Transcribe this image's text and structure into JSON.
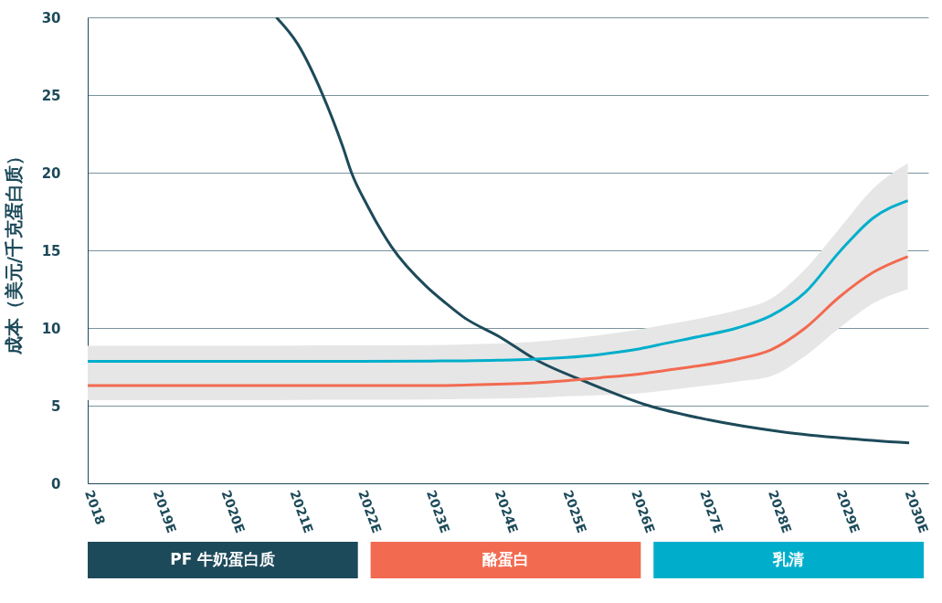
{
  "chart_data": {
    "type": "line",
    "ylabel": "成本（美元/千克蛋白质）",
    "x": [
      2018,
      2019,
      2020,
      2021,
      2022,
      2023,
      2024,
      2024.5,
      2025,
      2025.5,
      2026,
      2026.5,
      2027,
      2027.5,
      2028,
      2028.5,
      2029,
      2029.5,
      2030
    ],
    "series": [
      {
        "name": "PF 牛奶蛋白质",
        "color": "#1d4a5a",
        "x": [
          2020.76,
          2021.07,
          2021.43,
          2021.73,
          2021.86,
          2022.09,
          2022.45,
          2022.95,
          2023.24,
          2023.5,
          2024.04,
          2024.54,
          2025.31,
          2026.21,
          2027.07,
          2028.19,
          2029.09,
          2030.02
        ],
        "values": [
          30.0,
          28.3,
          25.1,
          21.7,
          20.0,
          17.9,
          15.2,
          12.7,
          11.6,
          10.7,
          9.4,
          8.0,
          6.5,
          5.0,
          4.1,
          3.3,
          2.9,
          2.6
        ]
      },
      {
        "name": "酪蛋白",
        "color": "#f26a50",
        "values": [
          6.3,
          6.3,
          6.3,
          6.3,
          6.3,
          6.3,
          6.38,
          6.45,
          6.6,
          6.8,
          7.0,
          7.3,
          7.6,
          8.0,
          8.6,
          10.0,
          12.0,
          13.6,
          14.6
        ]
      },
      {
        "name": "乳清",
        "color": "#00aecb",
        "values": [
          7.85,
          7.85,
          7.85,
          7.85,
          7.85,
          7.87,
          7.92,
          7.98,
          8.1,
          8.3,
          8.6,
          9.05,
          9.5,
          10.0,
          10.8,
          12.3,
          14.9,
          17.1,
          18.2
        ],
        "lower": [
          5.35,
          5.35,
          5.35,
          5.37,
          5.38,
          5.4,
          5.45,
          5.5,
          5.6,
          5.68,
          5.77,
          6.0,
          6.27,
          6.55,
          6.9,
          8.2,
          10.0,
          11.6,
          12.5
        ],
        "upper": [
          8.85,
          8.85,
          8.85,
          8.87,
          8.88,
          8.9,
          9.0,
          9.1,
          9.3,
          9.55,
          9.85,
          10.25,
          10.65,
          11.15,
          11.9,
          13.8,
          16.4,
          19.0,
          20.6
        ]
      }
    ],
    "xlim": [
      2018,
      2030.3
    ],
    "xticks": [
      2018,
      {
        "value": 2019,
        "label": "2019E"
      },
      {
        "value": 2020,
        "label": "2020E"
      },
      {
        "value": 2021,
        "label": "2021E"
      },
      {
        "value": 2022,
        "label": "2022E"
      },
      {
        "value": 2023,
        "label": "2023E"
      },
      {
        "value": 2024,
        "label": "2024E"
      },
      {
        "value": 2025,
        "label": "2025E"
      },
      {
        "value": 2026,
        "label": "2026E"
      },
      {
        "value": 2027,
        "label": "2027E"
      },
      {
        "value": 2028,
        "label": "2028E"
      },
      {
        "value": 2029,
        "label": "2029E"
      },
      {
        "value": 2030,
        "label": "2030E"
      }
    ],
    "ylim": [
      0,
      30
    ],
    "yticks": [
      0,
      5,
      10,
      15,
      20,
      25,
      30
    ],
    "grid": "y",
    "legend": "bottom",
    "marker": "none",
    "line_style": "solid"
  }
}
